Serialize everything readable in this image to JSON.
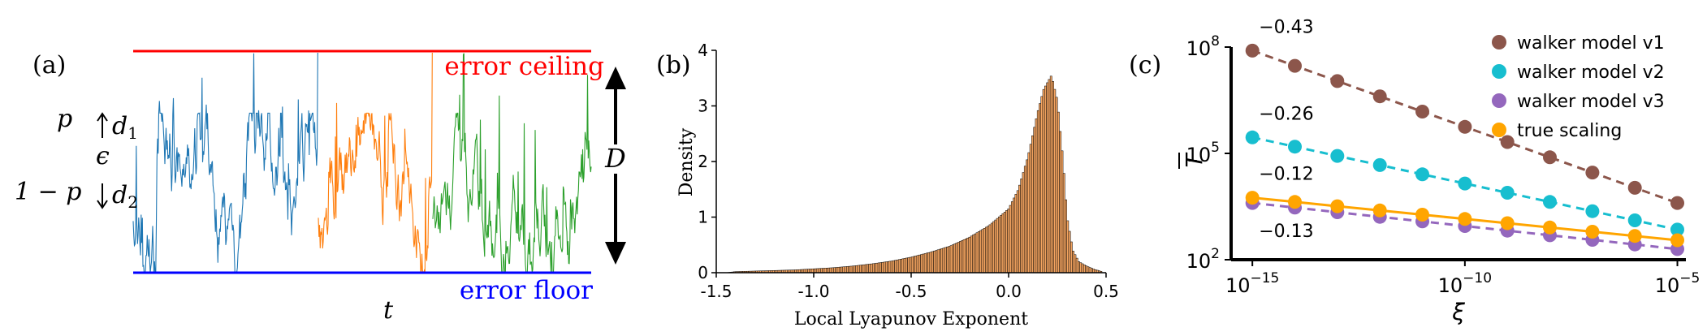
{
  "chart_data": [
    {
      "panel": "(a)",
      "type": "line",
      "xlabel": "t",
      "upper_line_label": "error ceiling",
      "lower_line_label": "error floor",
      "range_label": "D",
      "p_label": "p",
      "one_minus_p_label": "1 − p",
      "epsilon_label": "ϵ",
      "d1_label": "d",
      "d1_sub": "1",
      "d2_label": "d",
      "d2_sub": "2",
      "segment_colors": [
        "#1f77b4",
        "#ff7f0e",
        "#2ca02c"
      ],
      "ceiling_color": "#ff0000",
      "floor_color": "#0000ff"
    },
    {
      "panel": "(b)",
      "type": "bar",
      "xlabel": "Local Lyapunov Exponent",
      "ylabel": "Density",
      "xlim": [
        -1.5,
        0.5
      ],
      "ylim": [
        0,
        4
      ],
      "xticks": [
        "-1.5",
        "-1.0",
        "-0.5",
        "0.0",
        "0.5"
      ],
      "yticks": [
        "0",
        "1",
        "2",
        "3",
        "4"
      ],
      "bar_color": "#f4a460",
      "edge_color": "#000000",
      "bins": [
        {
          "x": -1.4,
          "y": 0.02
        },
        {
          "x": -1.3,
          "y": 0.03
        },
        {
          "x": -1.2,
          "y": 0.04
        },
        {
          "x": -1.1,
          "y": 0.05
        },
        {
          "x": -1.0,
          "y": 0.07
        },
        {
          "x": -0.9,
          "y": 0.09
        },
        {
          "x": -0.8,
          "y": 0.12
        },
        {
          "x": -0.7,
          "y": 0.16
        },
        {
          "x": -0.6,
          "y": 0.21
        },
        {
          "x": -0.5,
          "y": 0.28
        },
        {
          "x": -0.4,
          "y": 0.37
        },
        {
          "x": -0.3,
          "y": 0.48
        },
        {
          "x": -0.2,
          "y": 0.64
        },
        {
          "x": -0.1,
          "y": 0.85
        },
        {
          "x": 0.0,
          "y": 1.15
        },
        {
          "x": 0.05,
          "y": 1.5
        },
        {
          "x": 0.1,
          "y": 2.1
        },
        {
          "x": 0.15,
          "y": 2.9
        },
        {
          "x": 0.18,
          "y": 3.3
        },
        {
          "x": 0.22,
          "y": 3.55
        },
        {
          "x": 0.25,
          "y": 3.1
        },
        {
          "x": 0.28,
          "y": 2.0
        },
        {
          "x": 0.3,
          "y": 1.0
        },
        {
          "x": 0.33,
          "y": 0.4
        },
        {
          "x": 0.36,
          "y": 0.2
        },
        {
          "x": 0.4,
          "y": 0.12
        },
        {
          "x": 0.44,
          "y": 0.06
        },
        {
          "x": 0.48,
          "y": 0.02
        }
      ]
    },
    {
      "panel": "(c)",
      "type": "scatter",
      "xlabel": "ξ",
      "ylabel": "T",
      "xscale": "log",
      "yscale": "log",
      "xlim": [
        -15.5,
        -4.8
      ],
      "ylim": [
        2,
        8
      ],
      "xticks": [
        {
          "base": "10",
          "exp": "−15"
        },
        {
          "base": "10",
          "exp": "−10"
        },
        {
          "base": "10",
          "exp": "−5"
        }
      ],
      "yticks": [
        {
          "base": "10",
          "exp": "2"
        },
        {
          "base": "10",
          "exp": "5"
        },
        {
          "base": "10",
          "exp": "8"
        }
      ],
      "legend_position": "top-right",
      "x": [
        -15,
        -14,
        -13,
        -12,
        -11,
        -10,
        -9,
        -8,
        -7,
        -6,
        -5
      ],
      "series": [
        {
          "name": "walker model v1",
          "color": "#8c564b",
          "slope_label": "−0.43",
          "line": "dashed",
          "log10_values": [
            7.9,
            7.47,
            7.04,
            6.61,
            6.18,
            5.75,
            5.32,
            4.89,
            4.46,
            4.03,
            3.6
          ]
        },
        {
          "name": "walker model v2",
          "color": "#17becf",
          "slope_label": "−0.26",
          "line": "dashed",
          "log10_values": [
            5.45,
            5.19,
            4.93,
            4.67,
            4.41,
            4.15,
            3.89,
            3.63,
            3.37,
            3.11,
            2.85
          ]
        },
        {
          "name": "walker model v3",
          "color": "#9467bd",
          "slope_label": "−0.13",
          "line": "dashed",
          "log10_values": [
            3.6,
            3.47,
            3.34,
            3.21,
            3.08,
            2.95,
            2.82,
            2.69,
            2.56,
            2.43,
            2.3
          ]
        },
        {
          "name": "true scaling",
          "color": "#ffa500",
          "slope_label": "−0.12",
          "line": "solid",
          "log10_values": [
            3.75,
            3.63,
            3.51,
            3.39,
            3.27,
            3.15,
            3.03,
            2.91,
            2.79,
            2.67,
            2.55
          ]
        }
      ]
    }
  ]
}
